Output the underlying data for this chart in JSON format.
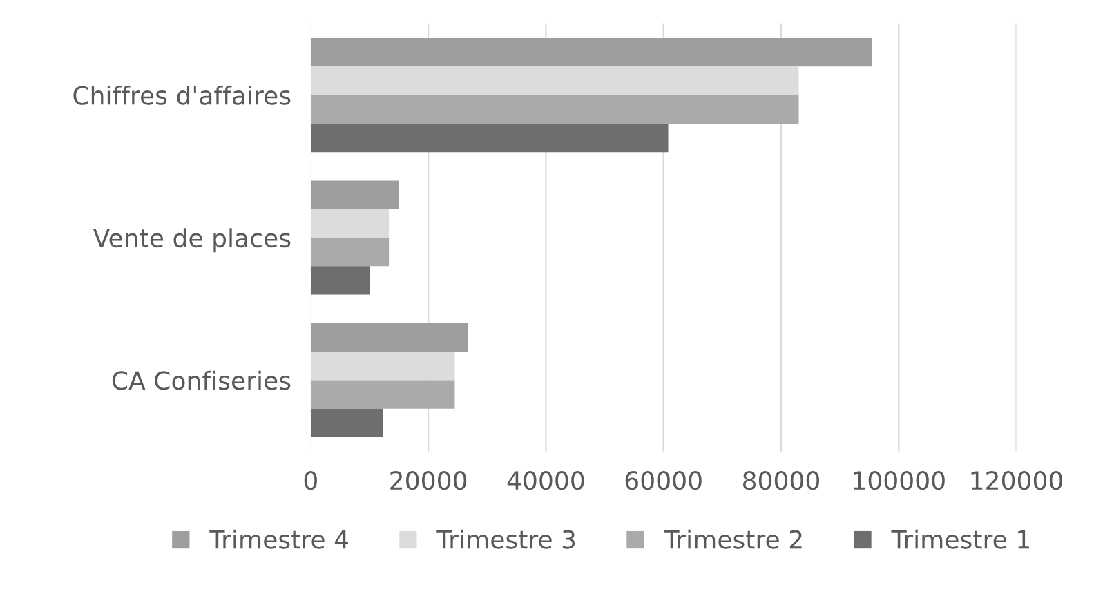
{
  "chart_data": {
    "type": "bar",
    "orientation": "horizontal",
    "categories": [
      "Chiffres d'affaires",
      "Vente de places",
      "CA Confiseries"
    ],
    "series": [
      {
        "name": "Trimestre 4",
        "color": "#9e9e9e",
        "values": [
          95500,
          15000,
          26800
        ]
      },
      {
        "name": "Trimestre 3",
        "color": "#dcdcdc",
        "values": [
          83000,
          13300,
          24500
        ]
      },
      {
        "name": "Trimestre 2",
        "color": "#aaaaaa",
        "values": [
          83000,
          13300,
          24500
        ]
      },
      {
        "name": "Trimestre 1",
        "color": "#6e6e6e",
        "values": [
          60800,
          10000,
          12300
        ]
      }
    ],
    "xlim": [
      0,
      120000
    ],
    "xticks": [
      0,
      20000,
      40000,
      60000,
      80000,
      100000,
      120000
    ],
    "grid": "x",
    "legend": "bottom"
  }
}
